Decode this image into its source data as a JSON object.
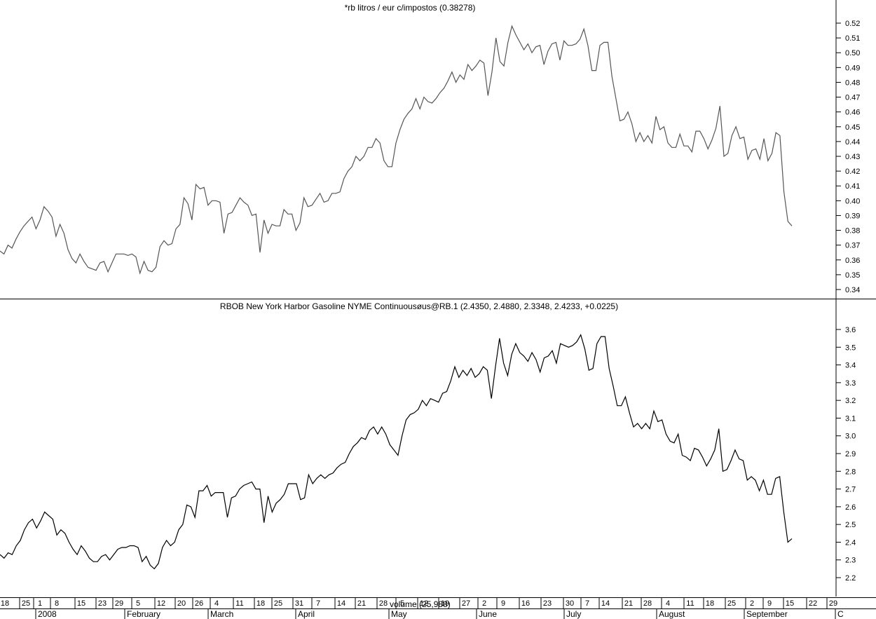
{
  "chart_data": [
    {
      "type": "line",
      "title": "*rb litros / eur c/impostos (0.38278)",
      "line_color": "#555555",
      "ylim": [
        0.335,
        0.525
      ],
      "y_ticks": [
        "0.52",
        "0.51",
        "0.50",
        "0.49",
        "0.48",
        "0.47",
        "0.46",
        "0.45",
        "0.44",
        "0.43",
        "0.42",
        "0.41",
        "0.40",
        "0.39",
        "0.38",
        "0.37",
        "0.36",
        "0.35",
        "0.34"
      ],
      "xlim": [
        0,
        187
      ],
      "series": [
        {
          "values": [
            0.366,
            0.364,
            0.37,
            0.368,
            0.374,
            0.379,
            0.383,
            0.386,
            0.389,
            0.381,
            0.387,
            0.396,
            0.393,
            0.389,
            0.376,
            0.384,
            0.378,
            0.367,
            0.361,
            0.358,
            0.364,
            0.359,
            0.355,
            0.354,
            0.353,
            0.358,
            0.359,
            0.352,
            0.358,
            0.364,
            0.364,
            0.364,
            0.363,
            0.364,
            0.362,
            0.351,
            0.359,
            0.353,
            0.352,
            0.355,
            0.369,
            0.373,
            0.37,
            0.371,
            0.381,
            0.384,
            0.402,
            0.398,
            0.387,
            0.411,
            0.408,
            0.409,
            0.397,
            0.4,
            0.4,
            0.399,
            0.378,
            0.391,
            0.392,
            0.397,
            0.402,
            0.399,
            0.397,
            0.39,
            0.391,
            0.365,
            0.387,
            0.378,
            0.384,
            0.383,
            0.383,
            0.394,
            0.391,
            0.391,
            0.38,
            0.385,
            0.402,
            0.396,
            0.397,
            0.401,
            0.405,
            0.399,
            0.4,
            0.405,
            0.405,
            0.406,
            0.415,
            0.42,
            0.423,
            0.43,
            0.427,
            0.43,
            0.436,
            0.436,
            0.442,
            0.439,
            0.427,
            0.423,
            0.423,
            0.439,
            0.448,
            0.455,
            0.459,
            0.462,
            0.469,
            0.462,
            0.47,
            0.467,
            0.466,
            0.469,
            0.473,
            0.476,
            0.481,
            0.487,
            0.48,
            0.485,
            0.482,
            0.492,
            0.488,
            0.491,
            0.495,
            0.493,
            0.471,
            0.487,
            0.51,
            0.494,
            0.491,
            0.507,
            0.518,
            0.512,
            0.507,
            0.502,
            0.506,
            0.5,
            0.504,
            0.505,
            0.492,
            0.501,
            0.506,
            0.507,
            0.495,
            0.508,
            0.505,
            0.505,
            0.506,
            0.509,
            0.516,
            0.505,
            0.488,
            0.488,
            0.505,
            0.507,
            0.507,
            0.484,
            0.469,
            0.454,
            0.455,
            0.46,
            0.452,
            0.44,
            0.446,
            0.44,
            0.444,
            0.439,
            0.457,
            0.448,
            0.45,
            0.439,
            0.436,
            0.436,
            0.445,
            0.437,
            0.437,
            0.433,
            0.447,
            0.447,
            0.442,
            0.435,
            0.441,
            0.449,
            0.464,
            0.43,
            0.432,
            0.444,
            0.45,
            0.442,
            0.443,
            0.428,
            0.434,
            0.435,
            0.428,
            0.442,
            0.427,
            0.432,
            0.446,
            0.444,
            0.406,
            0.386,
            0.383
          ]
        }
      ]
    },
    {
      "type": "line",
      "title": "RBOB New York Harbor Gasoline NYME Continuousøus@RB.1 (2.4350, 2.4880, 2.3348, 2.4233, +0.0225)",
      "line_color": "#000000",
      "ylim": [
        2.1,
        3.65
      ],
      "y_ticks": [
        "3.6",
        "3.5",
        "3.4",
        "3.3",
        "3.2",
        "3.1",
        "3.0",
        "2.9",
        "2.8",
        "2.7",
        "2.6",
        "2.5",
        "2.4",
        "2.3",
        "2.2"
      ],
      "xlim": [
        0,
        187
      ],
      "series": [
        {
          "values": [
            2.33,
            2.31,
            2.34,
            2.33,
            2.38,
            2.41,
            2.47,
            2.51,
            2.53,
            2.48,
            2.52,
            2.57,
            2.55,
            2.53,
            2.44,
            2.47,
            2.45,
            2.4,
            2.36,
            2.33,
            2.38,
            2.35,
            2.31,
            2.29,
            2.29,
            2.32,
            2.33,
            2.3,
            2.33,
            2.36,
            2.37,
            2.37,
            2.38,
            2.38,
            2.37,
            2.29,
            2.32,
            2.27,
            2.25,
            2.28,
            2.37,
            2.41,
            2.38,
            2.4,
            2.47,
            2.5,
            2.61,
            2.6,
            2.54,
            2.69,
            2.69,
            2.72,
            2.66,
            2.68,
            2.68,
            2.68,
            2.54,
            2.65,
            2.66,
            2.7,
            2.72,
            2.73,
            2.74,
            2.7,
            2.7,
            2.51,
            2.66,
            2.57,
            2.62,
            2.64,
            2.67,
            2.73,
            2.73,
            2.73,
            2.64,
            2.65,
            2.78,
            2.73,
            2.76,
            2.78,
            2.76,
            2.78,
            2.79,
            2.82,
            2.84,
            2.85,
            2.9,
            2.94,
            2.96,
            2.99,
            2.98,
            3.03,
            3.05,
            3.01,
            3.05,
            3.01,
            2.95,
            2.92,
            2.89,
            3.0,
            3.09,
            3.12,
            3.13,
            3.15,
            3.2,
            3.17,
            3.21,
            3.2,
            3.19,
            3.24,
            3.25,
            3.31,
            3.39,
            3.33,
            3.37,
            3.34,
            3.38,
            3.33,
            3.35,
            3.39,
            3.37,
            3.21,
            3.39,
            3.55,
            3.41,
            3.34,
            3.46,
            3.52,
            3.47,
            3.45,
            3.42,
            3.47,
            3.43,
            3.36,
            3.44,
            3.45,
            3.48,
            3.41,
            3.52,
            3.51,
            3.5,
            3.51,
            3.53,
            3.57,
            3.49,
            3.37,
            3.38,
            3.52,
            3.56,
            3.56,
            3.38,
            3.28,
            3.17,
            3.17,
            3.22,
            3.13,
            3.05,
            3.07,
            3.04,
            3.07,
            3.04,
            3.14,
            3.08,
            3.09,
            3.01,
            2.97,
            2.96,
            3.01,
            2.89,
            2.88,
            2.86,
            2.93,
            2.92,
            2.88,
            2.83,
            2.87,
            2.92,
            3.04,
            2.8,
            2.81,
            2.86,
            2.92,
            2.87,
            2.86,
            2.75,
            2.77,
            2.75,
            2.69,
            2.75,
            2.67,
            2.67,
            2.76,
            2.77,
            2.57,
            2.4,
            2.42
          ]
        }
      ]
    }
  ],
  "volume_label": "volume (25,988)",
  "x_axis": {
    "day_ticks": [
      "18",
      "25",
      "1",
      "8",
      "15",
      "23",
      "29",
      "5",
      "12",
      "20",
      "26",
      "4",
      "11",
      "18",
      "25",
      "31",
      "7",
      "14",
      "21",
      "28",
      "5",
      "12",
      "19",
      "27",
      "2",
      "9",
      "16",
      "23",
      "30",
      "7",
      "14",
      "21",
      "28",
      "4",
      "11",
      "18",
      "25",
      "2",
      "9",
      "15",
      "22",
      "29"
    ],
    "month_labels": [
      "2008",
      "February",
      "March",
      "April",
      "May",
      "June",
      "July",
      "August",
      "September",
      "C"
    ]
  }
}
